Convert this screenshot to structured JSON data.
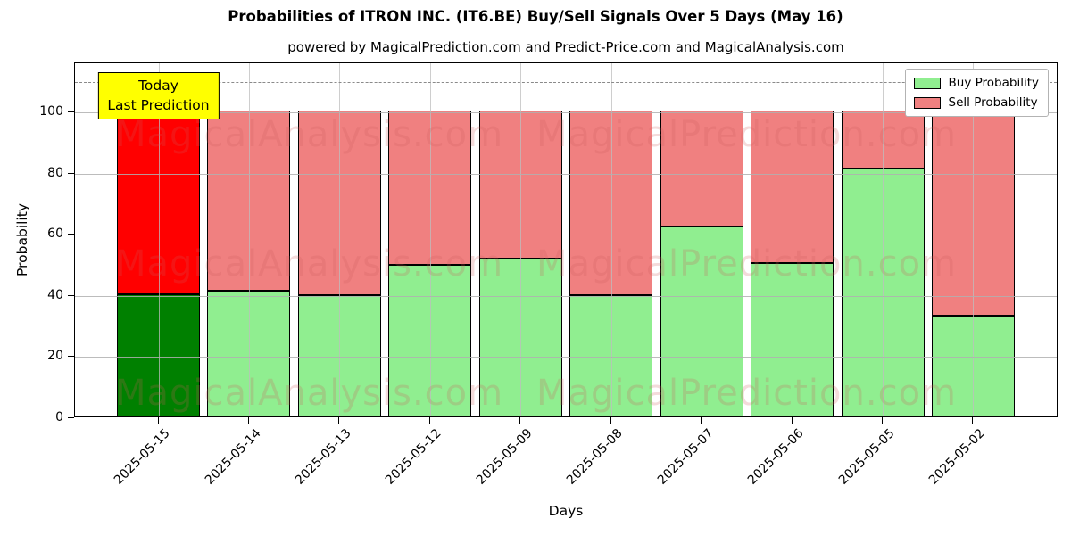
{
  "figure": {
    "title": "Probabilities of ITRON INC. (IT6.BE) Buy/Sell Signals Over 5 Days (May 16)",
    "subtitle": "powered by MagicalPrediction.com and Predict-Price.com and MagicalAnalysis.com"
  },
  "chart_data": {
    "type": "bar",
    "stacked": true,
    "title": "Probabilities of ITRON INC. (IT6.BE) Buy/Sell Signals Over 5 Days (May 16)",
    "subtitle": "powered by MagicalPrediction.com and Predict-Price.com and MagicalAnalysis.com",
    "xlabel": "Days",
    "ylabel": "Probability",
    "ylim": [
      0,
      116
    ],
    "yticks": [
      0,
      20,
      40,
      60,
      80,
      100
    ],
    "grid": true,
    "categories": [
      "2025-05-15",
      "2025-05-14",
      "2025-05-13",
      "2025-05-12",
      "2025-05-09",
      "2025-05-08",
      "2025-05-07",
      "2025-05-06",
      "2025-05-05",
      "2025-05-02"
    ],
    "series": [
      {
        "name": "Buy Probability",
        "values": [
          40,
          41,
          39.5,
          49.5,
          51.5,
          39.5,
          62,
          50,
          81,
          33
        ],
        "color": "#90ee90",
        "today_color": "#008000"
      },
      {
        "name": "Sell Probability",
        "values": [
          60,
          59,
          60.5,
          50.5,
          48.5,
          60.5,
          38,
          50,
          19,
          67
        ],
        "color": "#f08080",
        "today_color": "#ff0000"
      }
    ],
    "today_index": 0,
    "threshold_line": {
      "y": 110,
      "style": "dashed",
      "color": "#8a8a8a"
    },
    "legend": {
      "position": "upper right",
      "items": [
        "Buy Probability",
        "Sell Probability"
      ]
    },
    "annotation": {
      "line1": "Today",
      "line2": "Last Prediction",
      "bg_color": "#ffff00",
      "target_category": "2025-05-15"
    },
    "watermarks": [
      "MagicalAnalysis.com",
      "MagicalPrediction.com"
    ]
  }
}
